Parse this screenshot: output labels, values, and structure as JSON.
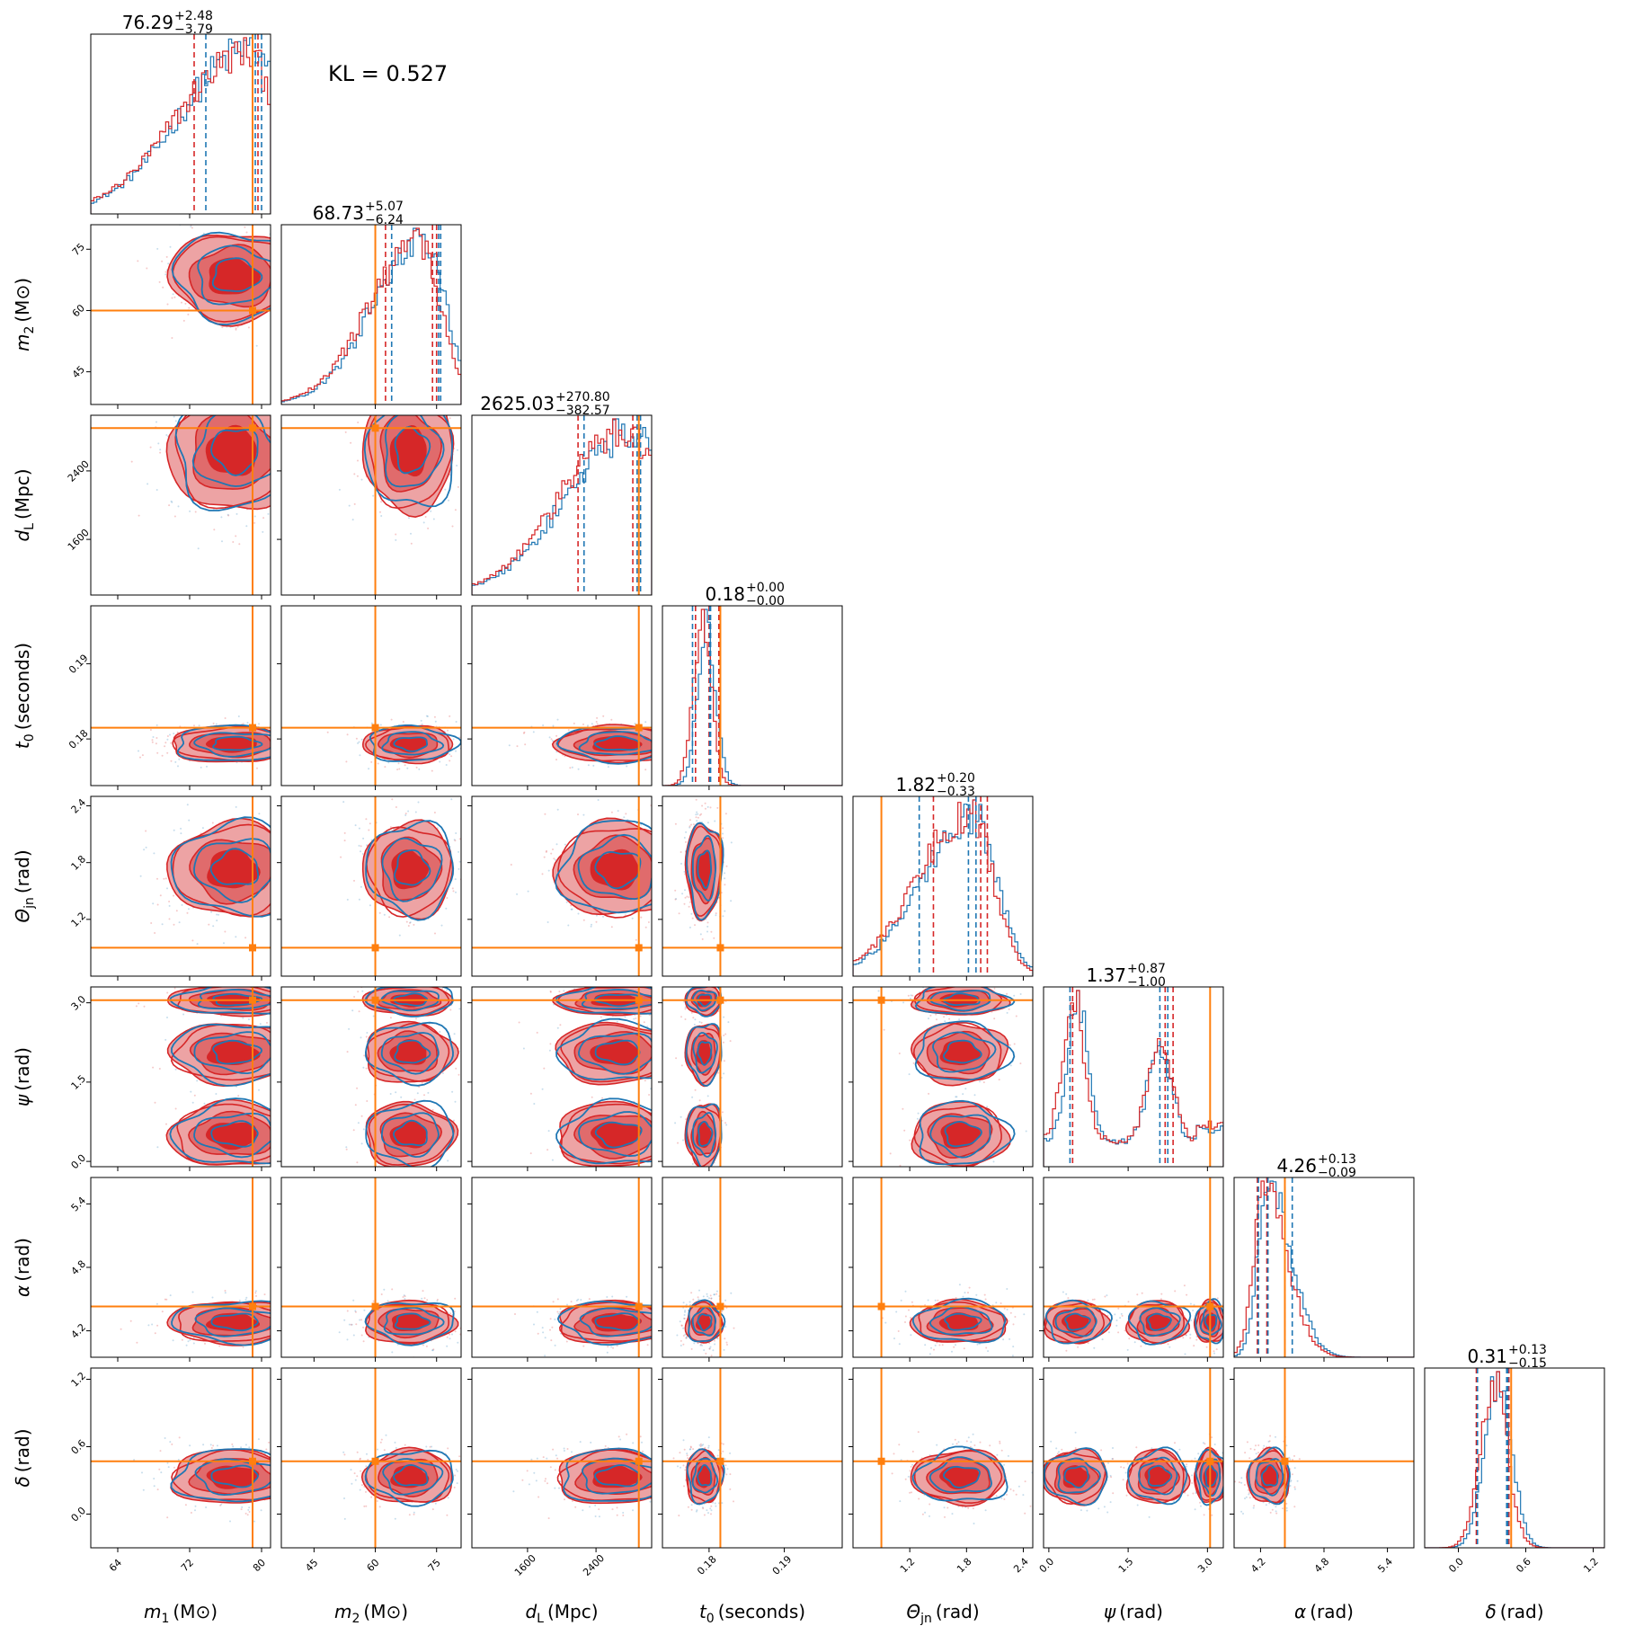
{
  "kl_text": "KL = 0.527",
  "colors": {
    "red": "#d62728",
    "red_light": "#eda3a4",
    "red_mid": "#e06b6c",
    "blue": "#1f77b4",
    "truth": "#ff7f0e"
  },
  "chart_data": {
    "type": "corner",
    "parameters": [
      {
        "key": "m1",
        "label_sym": "m",
        "label_sub": "1",
        "label_unit": "(M⊙)",
        "range": [
          61,
          81
        ],
        "ticks": [
          64,
          72,
          80
        ],
        "tick_labels": [
          "64",
          "72",
          "80"
        ],
        "truth": 79.0,
        "title_main": "76.29",
        "title_plus": "+2.48",
        "title_minus": "−3.79",
        "red_q": [
          72.5,
          79.0,
          79.6
        ],
        "blue_q": [
          73.8,
          79.3,
          80.0
        ],
        "mode": 78.5,
        "sigma": 3.5,
        "skew": -1
      },
      {
        "key": "m2",
        "label_sym": "m",
        "label_sub": "2",
        "label_unit": "(M⊙)",
        "range": [
          37,
          81
        ],
        "ticks": [
          45,
          60,
          75
        ],
        "tick_labels": [
          "45",
          "60",
          "75"
        ],
        "truth": 60.0,
        "title_main": "68.73",
        "title_plus": "+5.07",
        "title_minus": "−6.24",
        "red_q": [
          62.5,
          74.0,
          75.0
        ],
        "blue_q": [
          64.0,
          75.5,
          76.0
        ],
        "mode": 71.0,
        "sigma": 5.5,
        "skew": -0.5
      },
      {
        "key": "dL",
        "label_sym": "d",
        "label_sub": "L",
        "label_unit": "(Mpc)",
        "range": [
          950,
          3050
        ],
        "ticks": [
          1600,
          2400
        ],
        "tick_labels": [
          "1600",
          "2400"
        ],
        "truth": 2900,
        "title_main": "2625.03",
        "title_plus": "+270.80",
        "title_minus": "−382.57",
        "red_q": [
          2190,
          2830,
          2900
        ],
        "blue_q": [
          2260,
          2880,
          2920
        ],
        "mode": 2800,
        "sigma": 350,
        "skew": -1
      },
      {
        "key": "t0",
        "label_sym": "t",
        "label_sub": "0",
        "label_unit": "(seconds)",
        "range": [
          0.1738,
          0.1977
        ],
        "ticks": [
          0.18,
          0.19
        ],
        "tick_labels": [
          "0.18",
          "0.19"
        ],
        "truth": 0.1815,
        "title_main": "0.18",
        "title_plus": "+0.00",
        "title_minus": "−0.00",
        "red_q": [
          0.1782,
          0.18,
          0.1813
        ],
        "blue_q": [
          0.1778,
          0.1801,
          0.1802
        ],
        "mode": 0.1793,
        "sigma": 0.0012,
        "skew": 0
      },
      {
        "key": "thetajn",
        "label_sym": "Θ",
        "label_sub": "jn",
        "label_unit": "(rad)",
        "range": [
          0.6,
          2.5
        ],
        "ticks": [
          1.2,
          1.8,
          2.4
        ],
        "tick_labels": [
          "1.2",
          "1.8",
          "2.4"
        ],
        "truth": 0.9,
        "title_main": "1.82",
        "title_plus": "+0.20",
        "title_minus": "−0.33",
        "red_q": [
          1.45,
          1.95,
          2.02
        ],
        "blue_q": [
          1.3,
          1.82,
          1.9
        ],
        "mode": 1.85,
        "sigma": 0.25,
        "skew": -1
      },
      {
        "key": "psi",
        "label_sym": "ψ",
        "label_sub": "",
        "label_unit": "(rad)",
        "range": [
          -0.1,
          3.3
        ],
        "ticks": [
          0.0,
          1.5,
          3.0
        ],
        "tick_labels": [
          "0.0",
          "1.5",
          "3.0"
        ],
        "truth": 3.05,
        "title_main": "1.37",
        "title_plus": "+0.87",
        "title_minus": "−1.00",
        "red_q": [
          0.45,
          2.2,
          2.35
        ],
        "blue_q": [
          0.4,
          2.1,
          2.25
        ],
        "mode": 0.5,
        "sigma": 0.2,
        "skew": 0
      },
      {
        "key": "alpha",
        "label_sym": "α",
        "label_sub": "",
        "label_unit": "(rad)",
        "range": [
          3.95,
          5.65
        ],
        "ticks": [
          4.2,
          4.8,
          5.4
        ],
        "tick_labels": [
          "4.2",
          "4.8",
          "5.4"
        ],
        "truth": 4.43,
        "title_main": "4.26",
        "title_plus": "+0.13",
        "title_minus": "−0.09",
        "red_q": [
          4.17,
          4.26,
          4.43
        ],
        "blue_q": [
          4.18,
          4.27,
          4.5
        ],
        "mode": 4.25,
        "sigma": 0.1,
        "skew": 1
      },
      {
        "key": "delta",
        "label_sym": "δ",
        "label_sub": "",
        "label_unit": "(rad)",
        "range": [
          -0.3,
          1.3
        ],
        "ticks": [
          0.0,
          0.6,
          1.2
        ],
        "tick_labels": [
          "0.0",
          "0.6",
          "1.2"
        ],
        "truth": 0.47,
        "title_main": "0.31",
        "title_plus": "+0.13",
        "title_minus": "−0.15",
        "red_q": [
          0.16,
          0.44,
          0.45
        ],
        "blue_q": [
          0.17,
          0.43,
          0.44
        ],
        "mode": 0.33,
        "sigma": 0.12,
        "skew": 0
      }
    ]
  }
}
